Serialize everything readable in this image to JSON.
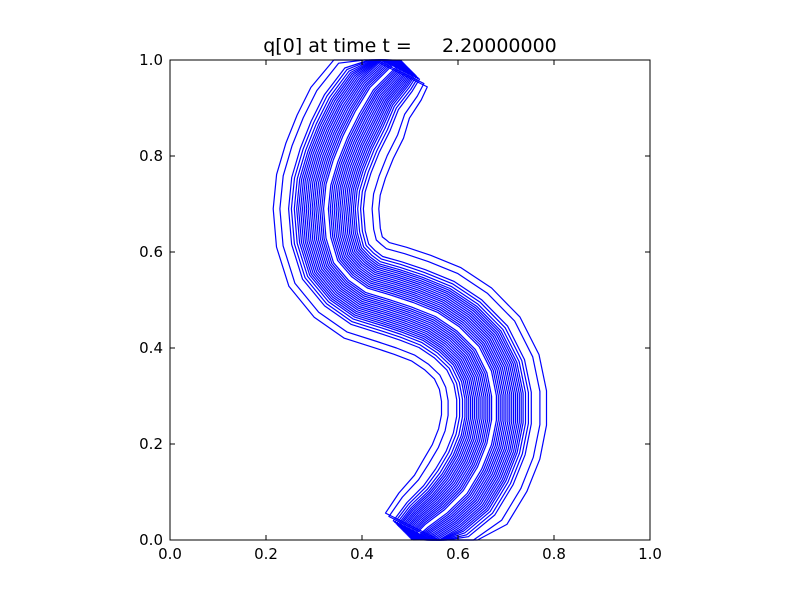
{
  "chart_data": {
    "type": "contour",
    "title": "q[0] at time t =     2.20000000",
    "xlabel": "",
    "ylabel": "",
    "xlim": [
      0.0,
      1.0
    ],
    "ylim": [
      0.0,
      1.0
    ],
    "x_ticks": [
      "0.0",
      "0.2",
      "0.4",
      "0.6",
      "0.8",
      "1.0"
    ],
    "y_ticks": [
      "0.0",
      "0.2",
      "0.4",
      "0.6",
      "0.8",
      "1.0"
    ],
    "grid": false,
    "legend": "none",
    "line_color": "#0000ff",
    "level_count": 20,
    "centerline": [
      [
        0.505,
        0.0
      ],
      [
        0.535,
        0.03
      ],
      [
        0.575,
        0.06
      ],
      [
        0.615,
        0.1
      ],
      [
        0.645,
        0.15
      ],
      [
        0.665,
        0.2
      ],
      [
        0.675,
        0.25
      ],
      [
        0.675,
        0.3
      ],
      [
        0.665,
        0.35
      ],
      [
        0.64,
        0.4
      ],
      [
        0.6,
        0.44
      ],
      [
        0.555,
        0.47
      ],
      [
        0.505,
        0.49
      ],
      [
        0.46,
        0.505
      ],
      [
        0.41,
        0.52
      ],
      [
        0.375,
        0.545
      ],
      [
        0.345,
        0.58
      ],
      [
        0.33,
        0.63
      ],
      [
        0.325,
        0.69
      ],
      [
        0.33,
        0.74
      ],
      [
        0.345,
        0.79
      ],
      [
        0.365,
        0.84
      ],
      [
        0.39,
        0.89
      ],
      [
        0.42,
        0.94
      ],
      [
        0.46,
        0.98
      ],
      [
        0.48,
        1.0
      ]
    ],
    "band_widths": [
      0.005,
      0.009,
      0.013,
      0.017,
      0.021,
      0.025,
      0.029,
      0.033,
      0.037,
      0.041,
      0.045,
      0.049,
      0.053,
      0.057,
      0.061,
      0.066,
      0.072,
      0.078,
      0.096,
      0.11
    ]
  }
}
